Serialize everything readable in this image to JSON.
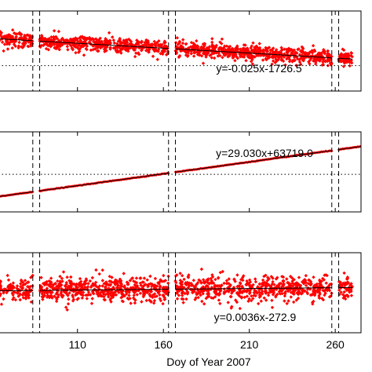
{
  "chart_data": [
    {
      "type": "scatter",
      "equation": "y=-0.025x-1726.5",
      "fit": {
        "slope": -0.025,
        "intercept": -1726.5
      },
      "series": [
        {
          "name": "",
          "kind": "points",
          "color": "#ff0000",
          "x_range": [
            60,
            270
          ],
          "center": [
            -1728.0,
            -1733.3
          ],
          "spread": 1.2
        },
        {
          "name": "",
          "kind": "fit-line",
          "color": "#000000"
        }
      ],
      "reference_level": -1735.0,
      "gaps": [
        [
          84,
          88
        ],
        [
          163,
          167
        ],
        [
          258,
          262
        ]
      ],
      "dashed_lines": [
        84,
        88,
        163,
        167,
        258,
        262
      ],
      "ylim": [
        -1741.5,
        -1721.0
      ]
    },
    {
      "type": "scatter",
      "equation": "y=29.030x+63719.0",
      "fit": {
        "slope": 29.03,
        "intercept": 63719.0
      },
      "series": [
        {
          "name": "",
          "kind": "points",
          "color": "#ff0000",
          "x_range": [
            60,
            275
          ],
          "center": null,
          "spread": 0
        },
        {
          "name": "",
          "kind": "fit-line",
          "color": "#000000"
        }
      ],
      "reference_level": 68300,
      "gaps": [
        [
          84,
          88
        ],
        [
          163,
          167
        ],
        [
          258,
          262
        ]
      ],
      "dashed_lines": [
        84,
        88,
        163,
        167,
        258,
        262
      ],
      "ylim": [
        63700,
        73500
      ]
    },
    {
      "type": "scatter",
      "equation": "y=0.0036x-272.9",
      "fit": {
        "slope": 0.0036,
        "intercept": -272.9
      },
      "series": [
        {
          "name": "",
          "kind": "points",
          "color": "#ff0000",
          "x_range": [
            60,
            270
          ],
          "center": [
            -272.6,
            -271.9
          ],
          "spread": 1.6
        },
        {
          "name": "",
          "kind": "fit-line",
          "color": "#000000"
        }
      ],
      "reference_level": null,
      "gaps": [
        [
          84,
          88
        ],
        [
          163,
          167
        ],
        [
          258,
          262
        ]
      ],
      "dashed_lines": [
        84,
        88,
        163,
        167,
        258,
        262
      ],
      "ylim": [
        -281.5,
        -264.5
      ]
    }
  ],
  "x_axis": {
    "label": "Doy of Year 2007",
    "ticks": [
      110,
      160,
      210,
      260
    ],
    "tick_labels": [
      "110",
      "160",
      "210",
      "260"
    ],
    "xlim": [
      64,
      275
    ]
  }
}
